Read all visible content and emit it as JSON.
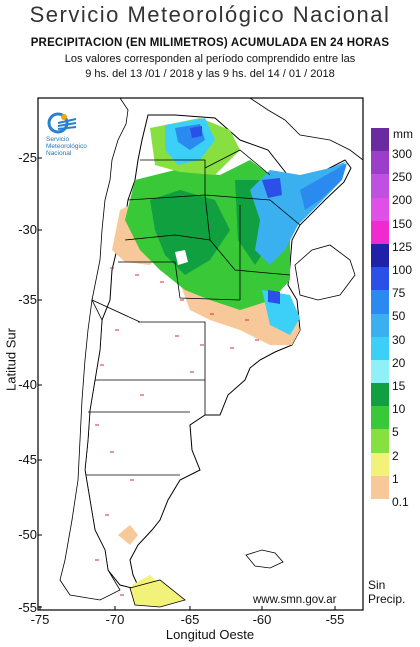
{
  "header": {
    "title": "Servicio Meteorológico Nacional",
    "subtitle": "PRECIPITACION (EN MILIMETROS) ACUMULADA EN 24 HORAS",
    "period_line1": "Los valores corresponden al período comprendido entre las",
    "period_line2": "9 hs. del 13 /01 / 2018  y las 9 hs. del 14 / 01 / 2018"
  },
  "axes": {
    "ylabel": "Latitud Sur",
    "xlabel": "Longitud Oeste",
    "yticks": [
      "-25",
      "-30",
      "-35",
      "-40",
      "-45",
      "-50",
      "-55"
    ],
    "xticks": [
      "-75",
      "-70",
      "-65",
      "-60",
      "-55"
    ]
  },
  "legend": {
    "unit": "mm",
    "labels": [
      "300",
      "250",
      "200",
      "150",
      "125",
      "100",
      "75",
      "50",
      "30",
      "20",
      "15",
      "10",
      "5",
      "2",
      "1",
      "0.1"
    ],
    "no_precip_line1": "Sin",
    "no_precip_line2": "Precip.",
    "colors": [
      "#6a2aa0",
      "#9b3fc8",
      "#c050e0",
      "#e04fe8",
      "#f02ad0",
      "#2020a8",
      "#2a50e8",
      "#2a8af0",
      "#3ab0f0",
      "#3cd0f8",
      "#90f0f8",
      "#10a040",
      "#38c838",
      "#88e040",
      "#f2f27a",
      "#f7c99a"
    ]
  },
  "logo": {
    "line1": "Servicio",
    "line2": "Meteorológico",
    "line3": "Nacional"
  },
  "credit": "www.smn.gov.ar"
}
